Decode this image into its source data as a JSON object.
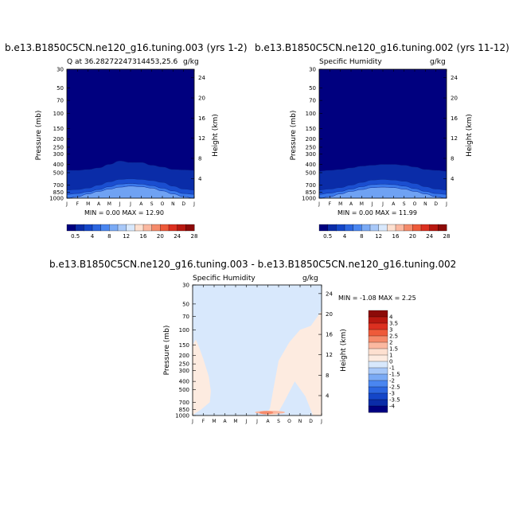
{
  "chart_data": [
    {
      "type": "heatmap",
      "id": "panel-top-left",
      "title": "b.e13.B1850C5CN.ne120_g16.tuning.003 (yrs 1-2)",
      "subtitle_left": "Q at 36.28272247314453,25.6",
      "subtitle_right": "g/kg",
      "xlabel": "",
      "ylabel": "Pressure (mb)",
      "y2label": "Height (km)",
      "x_ticks": [
        "J",
        "F",
        "M",
        "A",
        "M",
        "J",
        "J",
        "A",
        "S",
        "O",
        "N",
        "D",
        "J"
      ],
      "y_ticks": [
        "30",
        "50",
        "70",
        "100",
        "150",
        "200",
        "250",
        "300",
        "400",
        "500",
        "700",
        "850",
        "1000"
      ],
      "y2_ticks": [
        "24",
        "20",
        "16",
        "12",
        "8",
        "4"
      ],
      "ylim": [
        30,
        1000
      ],
      "y_scale": "log",
      "min_text": "MIN =   0.00 MAX =   12.90",
      "min": 0.0,
      "max": 12.9,
      "surface_pressure_by_month": [
        860,
        870,
        880,
        880,
        870,
        860,
        860,
        860,
        860,
        870,
        880,
        880,
        870
      ],
      "contour_levels": [
        {
          "level": 0.5,
          "p": [
            470,
            470,
            460,
            440,
            400,
            365,
            380,
            380,
            410,
            430,
            460,
            465,
            470
          ]
        },
        {
          "level": 2,
          "p": [
            800,
            790,
            760,
            700,
            640,
            600,
            590,
            600,
            620,
            650,
            720,
            780,
            800
          ]
        },
        {
          "level": 4,
          "p": [
            900,
            880,
            840,
            790,
            730,
            680,
            670,
            680,
            710,
            760,
            820,
            880,
            900
          ]
        },
        {
          "level": 6,
          "p": [
            1000,
            960,
            890,
            830,
            780,
            740,
            720,
            730,
            760,
            820,
            890,
            960,
            1000
          ]
        }
      ],
      "colorbar": {
        "labels": [
          "0.5",
          "4",
          "8",
          "12",
          "16",
          "20",
          "24",
          "28"
        ],
        "colors": [
          "#00007f",
          "#0a2ca8",
          "#1446c8",
          "#2c66e0",
          "#4a86f0",
          "#7aaaf5",
          "#a8c8f8",
          "#d8e8fc",
          "#fde0d0",
          "#fbb8a0",
          "#f58a6a",
          "#ee5a3a",
          "#dc3020",
          "#b81810",
          "#8c0a08"
        ]
      }
    },
    {
      "type": "heatmap",
      "id": "panel-top-right",
      "title": "b.e13.B1850C5CN.ne120_g16.tuning.002 (yrs 11-12)",
      "subtitle_left": "Specific Humidity",
      "subtitle_right": "g/kg",
      "xlabel": "",
      "ylabel": "Pressure (mb)",
      "y2label": "Height (km)",
      "x_ticks": [
        "J",
        "F",
        "M",
        "A",
        "M",
        "J",
        "J",
        "A",
        "S",
        "O",
        "N",
        "D",
        "J"
      ],
      "y_ticks": [
        "30",
        "50",
        "70",
        "100",
        "150",
        "200",
        "250",
        "300",
        "400",
        "500",
        "700",
        "850",
        "1000"
      ],
      "y2_ticks": [
        "24",
        "20",
        "16",
        "12",
        "8",
        "4"
      ],
      "ylim": [
        30,
        1000
      ],
      "y_scale": "log",
      "min_text": "MIN =   0.00 MAX =   11.99",
      "min": 0.0,
      "max": 11.99,
      "surface_pressure_by_month": [
        860,
        870,
        880,
        880,
        870,
        860,
        860,
        860,
        860,
        870,
        880,
        880,
        870
      ],
      "contour_levels": [
        {
          "level": 0.5,
          "p": [
            480,
            470,
            460,
            440,
            420,
            410,
            400,
            400,
            410,
            430,
            460,
            470,
            480
          ]
        },
        {
          "level": 2,
          "p": [
            800,
            780,
            750,
            700,
            650,
            610,
            600,
            610,
            630,
            670,
            730,
            780,
            800
          ]
        },
        {
          "level": 4,
          "p": [
            900,
            870,
            830,
            780,
            730,
            690,
            680,
            690,
            720,
            770,
            830,
            880,
            900
          ]
        },
        {
          "level": 6,
          "p": [
            1000,
            960,
            890,
            830,
            790,
            750,
            740,
            750,
            780,
            830,
            890,
            960,
            1000
          ]
        }
      ],
      "colorbar": {
        "labels": [
          "0.5",
          "4",
          "8",
          "12",
          "16",
          "20",
          "24",
          "28"
        ],
        "colors": [
          "#00007f",
          "#0a2ca8",
          "#1446c8",
          "#2c66e0",
          "#4a86f0",
          "#7aaaf5",
          "#a8c8f8",
          "#d8e8fc",
          "#fde0d0",
          "#fbb8a0",
          "#f58a6a",
          "#ee5a3a",
          "#dc3020",
          "#b81810",
          "#8c0a08"
        ]
      }
    },
    {
      "type": "heatmap",
      "id": "panel-bottom-diff",
      "title": "b.e13.B1850C5CN.ne120_g16.tuning.003 - b.e13.B1850C5CN.ne120_g16.tuning.002",
      "subtitle_left": "Specific Humidity",
      "subtitle_right": "g/kg",
      "xlabel": "",
      "ylabel": "Pressure (mb)",
      "y2label": "Height (km)",
      "x_ticks": [
        "J",
        "F",
        "M",
        "A",
        "M",
        "J",
        "J",
        "A",
        "S",
        "O",
        "N",
        "D",
        "J"
      ],
      "y_ticks": [
        "30",
        "50",
        "70",
        "100",
        "150",
        "200",
        "250",
        "300",
        "400",
        "500",
        "700",
        "850",
        "1000"
      ],
      "y2_ticks": [
        "24",
        "20",
        "16",
        "12",
        "8",
        "4"
      ],
      "ylim": [
        30,
        1000
      ],
      "y_scale": "log",
      "min_text": "MIN =  -1.08 MAX =   2.25",
      "min": -1.08,
      "max": 2.25,
      "background_value": 0,
      "positive_regions": [
        {
          "level": 0.5,
          "months": [
            0,
            0.3,
            0.6,
            1.0,
            1.5,
            1.7,
            1.6,
            0.8,
            0.2,
            0
          ],
          "p": [
            150,
            130,
            160,
            220,
            350,
            520,
            700,
            850,
            950,
            1000
          ]
        },
        {
          "level": 0.5,
          "months": [
            6.8,
            7.2,
            7.5,
            8.0,
            9.0,
            10.0,
            11.0,
            12.0,
            12.0,
            11.2,
            10.5,
            9.5,
            8.5,
            7.8
          ],
          "p": [
            1000,
            820,
            500,
            230,
            140,
            100,
            90,
            60,
            1000,
            1000,
            600,
            400,
            700,
            1000
          ]
        }
      ],
      "hot_spots": [
        {
          "level": 1.5,
          "month_range": [
            5.8,
            8.6
          ],
          "p_range": [
            880,
            960
          ]
        },
        {
          "level": 2.25,
          "month_range": [
            6.2,
            7.5
          ],
          "p_range": [
            905,
            950
          ]
        }
      ],
      "colorbar": {
        "labels": [
          "4",
          "3.5",
          "3",
          "2.5",
          "2",
          "1.5",
          "1",
          "0",
          "-1",
          "-1.5",
          "-2",
          "-2.5",
          "-3",
          "-3.5",
          "-4"
        ],
        "colors": [
          "#8c0a08",
          "#b81810",
          "#dc3020",
          "#ee5a3a",
          "#f58a6a",
          "#fbb8a0",
          "#fde0d0",
          "#fdebe0",
          "#d8e8fc",
          "#a8c8f8",
          "#7aaaf5",
          "#4a86f0",
          "#2c66e0",
          "#1446c8",
          "#0a2ca8",
          "#00007f"
        ]
      }
    }
  ]
}
